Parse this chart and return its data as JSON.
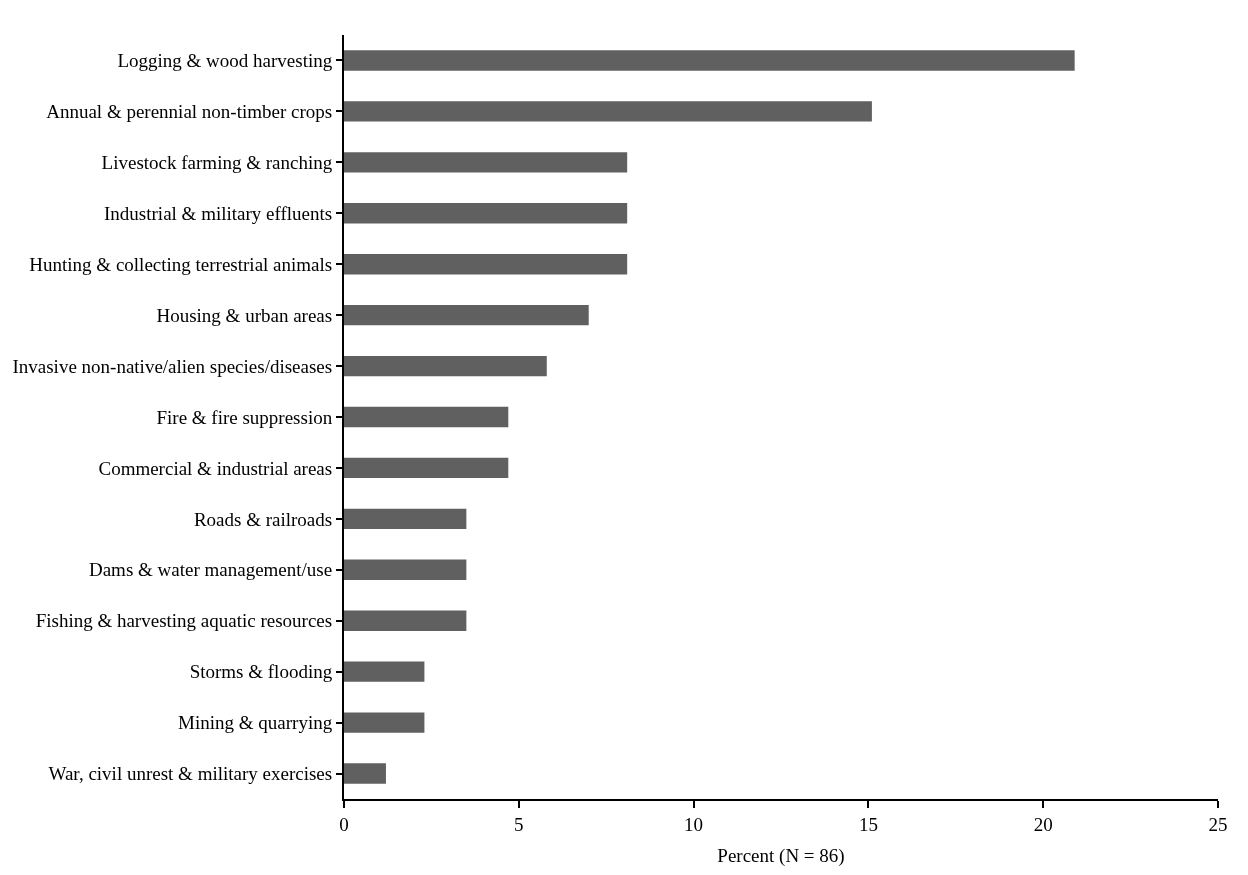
{
  "chart_data": {
    "type": "bar",
    "orientation": "horizontal",
    "xlabel": "Percent (N = 86)",
    "categories": [
      "Logging & wood harvesting",
      "Annual & perennial non-timber crops",
      "Livestock farming & ranching",
      "Industrial & military effluents",
      "Hunting & collecting terrestrial animals",
      "Housing & urban areas",
      "Invasive non-native/alien species/diseases",
      "Fire & fire suppression",
      "Commercial & industrial areas",
      "Roads & railroads",
      "Dams & water management/use",
      "Fishing & harvesting aquatic resources",
      "Storms & flooding",
      "Mining & quarrying",
      "War, civil unrest & military exercises"
    ],
    "values": [
      20.9,
      15.1,
      8.1,
      8.1,
      8.1,
      7.0,
      5.8,
      4.7,
      4.7,
      3.5,
      3.5,
      3.5,
      2.3,
      2.3,
      1.2
    ],
    "color": "#606060",
    "xlim": [
      0,
      25
    ],
    "xticks": [
      0,
      5,
      10,
      15,
      20,
      25
    ]
  }
}
